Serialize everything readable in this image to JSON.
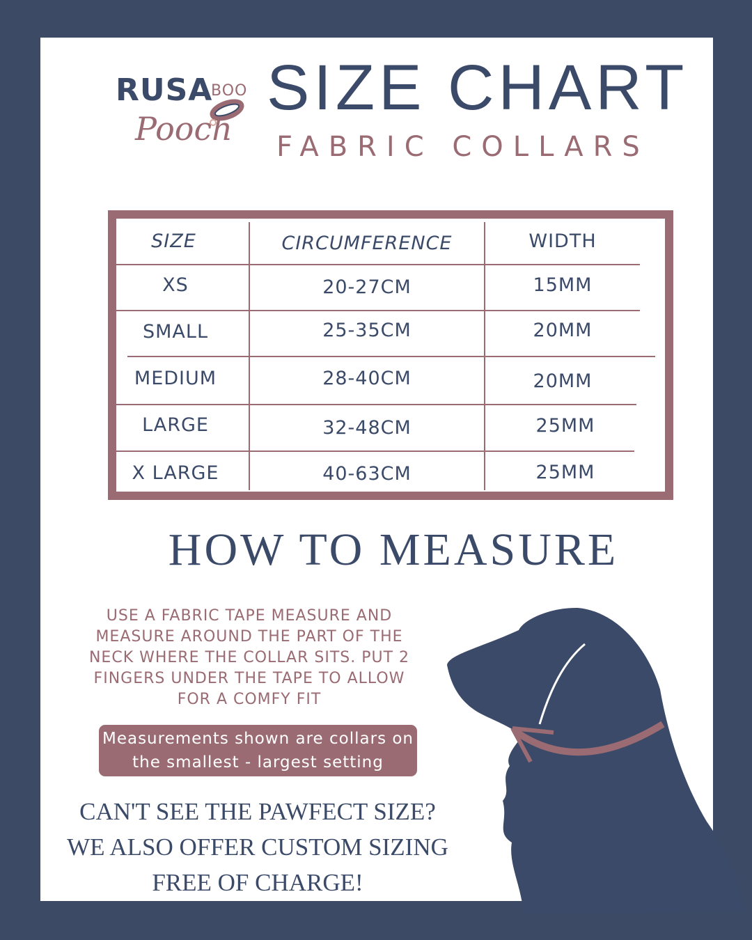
{
  "logo": {
    "line1": "RUSA",
    "line2": "BOO",
    "line3": "Pooch"
  },
  "header": {
    "title": "SIZE CHART",
    "subtitle": "FABRIC COLLARS"
  },
  "table": {
    "columns": [
      "SIZE",
      "CIRCUMFERENCE",
      "WIDTH"
    ],
    "rows": [
      [
        "XS",
        "20-27CM",
        "15MM"
      ],
      [
        "SMALL",
        "25-35CM",
        "20MM"
      ],
      [
        "MEDIUM",
        "28-40CM",
        "20MM"
      ],
      [
        "LARGE",
        "32-48CM",
        "25MM"
      ],
      [
        "X LARGE",
        "40-63CM",
        "25MM"
      ]
    ]
  },
  "how_to": {
    "title": "HOW TO MEASURE",
    "instructions": "USE A FABRIC TAPE MEASURE AND MEASURE AROUND THE PART OF THE NECK WHERE THE COLLAR SITS. PUT 2 FINGERS UNDER THE TAPE TO ALLOW FOR A COMFY FIT",
    "note": "Measurements shown are collars on the smallest - largest setting",
    "custom": "CAN'T SEE THE PAWFECT SIZE? WE ALSO OFFER CUSTOM SIZING FREE OF CHARGE!"
  },
  "colors": {
    "background": "#3d4a66",
    "navy": "#3b4a68",
    "mauve": "#9a6b72"
  },
  "illustration": {
    "icon": "dog-silhouette-with-collar-arrow"
  }
}
